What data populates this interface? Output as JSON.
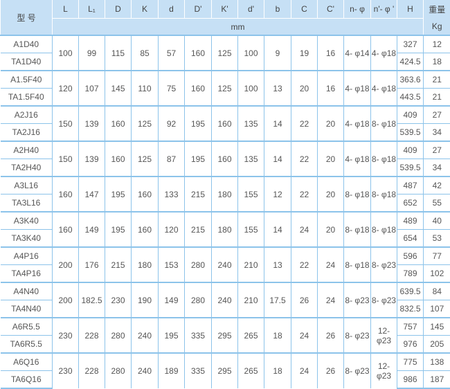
{
  "header": {
    "model": "型 号",
    "columns": [
      "L",
      "L₁",
      "D",
      "K",
      "d",
      "D'",
      "K'",
      "d'",
      "b",
      "C",
      "C'",
      "n- φ",
      "n'- φ '",
      "H"
    ],
    "unit_mm": "mm",
    "weight": "重量",
    "weight_unit": "Kg"
  },
  "groups": [
    {
      "models": [
        "A1D40",
        "TA1D40"
      ],
      "dims": [
        "100",
        "99",
        "115",
        "85",
        "57",
        "160",
        "125",
        "100",
        "9",
        "19",
        "16",
        "4- φ14",
        "4- φ18"
      ],
      "H": [
        "327",
        "424.5"
      ],
      "weight": [
        "12",
        "18"
      ]
    },
    {
      "models": [
        "A1.5F40",
        "TA1.5F40"
      ],
      "dims": [
        "120",
        "107",
        "145",
        "110",
        "75",
        "160",
        "125",
        "100",
        "13",
        "20",
        "16",
        "4- φ18",
        "4- φ18"
      ],
      "H": [
        "363.6",
        "443.5"
      ],
      "weight": [
        "21",
        "21"
      ]
    },
    {
      "models": [
        "A2J16",
        "TA2J16"
      ],
      "dims": [
        "150",
        "139",
        "160",
        "125",
        "92",
        "195",
        "160",
        "135",
        "14",
        "22",
        "20",
        "4- φ18",
        "8- φ18"
      ],
      "H": [
        "409",
        "539.5"
      ],
      "weight": [
        "27",
        "34"
      ]
    },
    {
      "models": [
        "A2H40",
        "TA2H40"
      ],
      "dims": [
        "150",
        "139",
        "160",
        "125",
        "87",
        "195",
        "160",
        "135",
        "14",
        "22",
        "20",
        "4- φ18",
        "8- φ18"
      ],
      "H": [
        "409",
        "539.5"
      ],
      "weight": [
        "27",
        "34"
      ]
    },
    {
      "models": [
        "A3L16",
        "TA3L16"
      ],
      "dims": [
        "160",
        "147",
        "195",
        "160",
        "133",
        "215",
        "180",
        "155",
        "12",
        "22",
        "20",
        "8- φ18",
        "8- φ18"
      ],
      "H": [
        "487",
        "652"
      ],
      "weight": [
        "42",
        "55"
      ]
    },
    {
      "models": [
        "A3K40",
        "TA3K40"
      ],
      "dims": [
        "160",
        "149",
        "195",
        "160",
        "120",
        "215",
        "180",
        "155",
        "14",
        "24",
        "20",
        "8- φ18",
        "8- φ18"
      ],
      "H": [
        "489",
        "654"
      ],
      "weight": [
        "40",
        "53"
      ]
    },
    {
      "models": [
        "A4P16",
        "TA4P16"
      ],
      "dims": [
        "200",
        "176",
        "215",
        "180",
        "153",
        "280",
        "240",
        "210",
        "13",
        "22",
        "24",
        "8- φ18",
        "8- φ23"
      ],
      "H": [
        "596",
        "789"
      ],
      "weight": [
        "77",
        "102"
      ]
    },
    {
      "models": [
        "A4N40",
        "TA4N40"
      ],
      "dims": [
        "200",
        "182.5",
        "230",
        "190",
        "149",
        "280",
        "240",
        "210",
        "17.5",
        "26",
        "24",
        "8- φ23",
        "8- φ23"
      ],
      "H": [
        "639.5",
        "832.5"
      ],
      "weight": [
        "84",
        "107"
      ]
    },
    {
      "models": [
        "A6R5.5",
        "TA6R5.5"
      ],
      "dims": [
        "230",
        "228",
        "280",
        "240",
        "195",
        "335",
        "295",
        "265",
        "18",
        "24",
        "26",
        "8- φ23",
        "12- φ23"
      ],
      "H": [
        "757",
        "976"
      ],
      "weight": [
        "145",
        "205"
      ]
    },
    {
      "models": [
        "A6Q16",
        "TA6Q16"
      ],
      "dims": [
        "230",
        "228",
        "280",
        "240",
        "189",
        "335",
        "295",
        "265",
        "18",
        "24",
        "26",
        "8- φ23",
        "12- φ23"
      ],
      "H": [
        "775",
        "986"
      ],
      "weight": [
        "138",
        "187"
      ]
    }
  ]
}
